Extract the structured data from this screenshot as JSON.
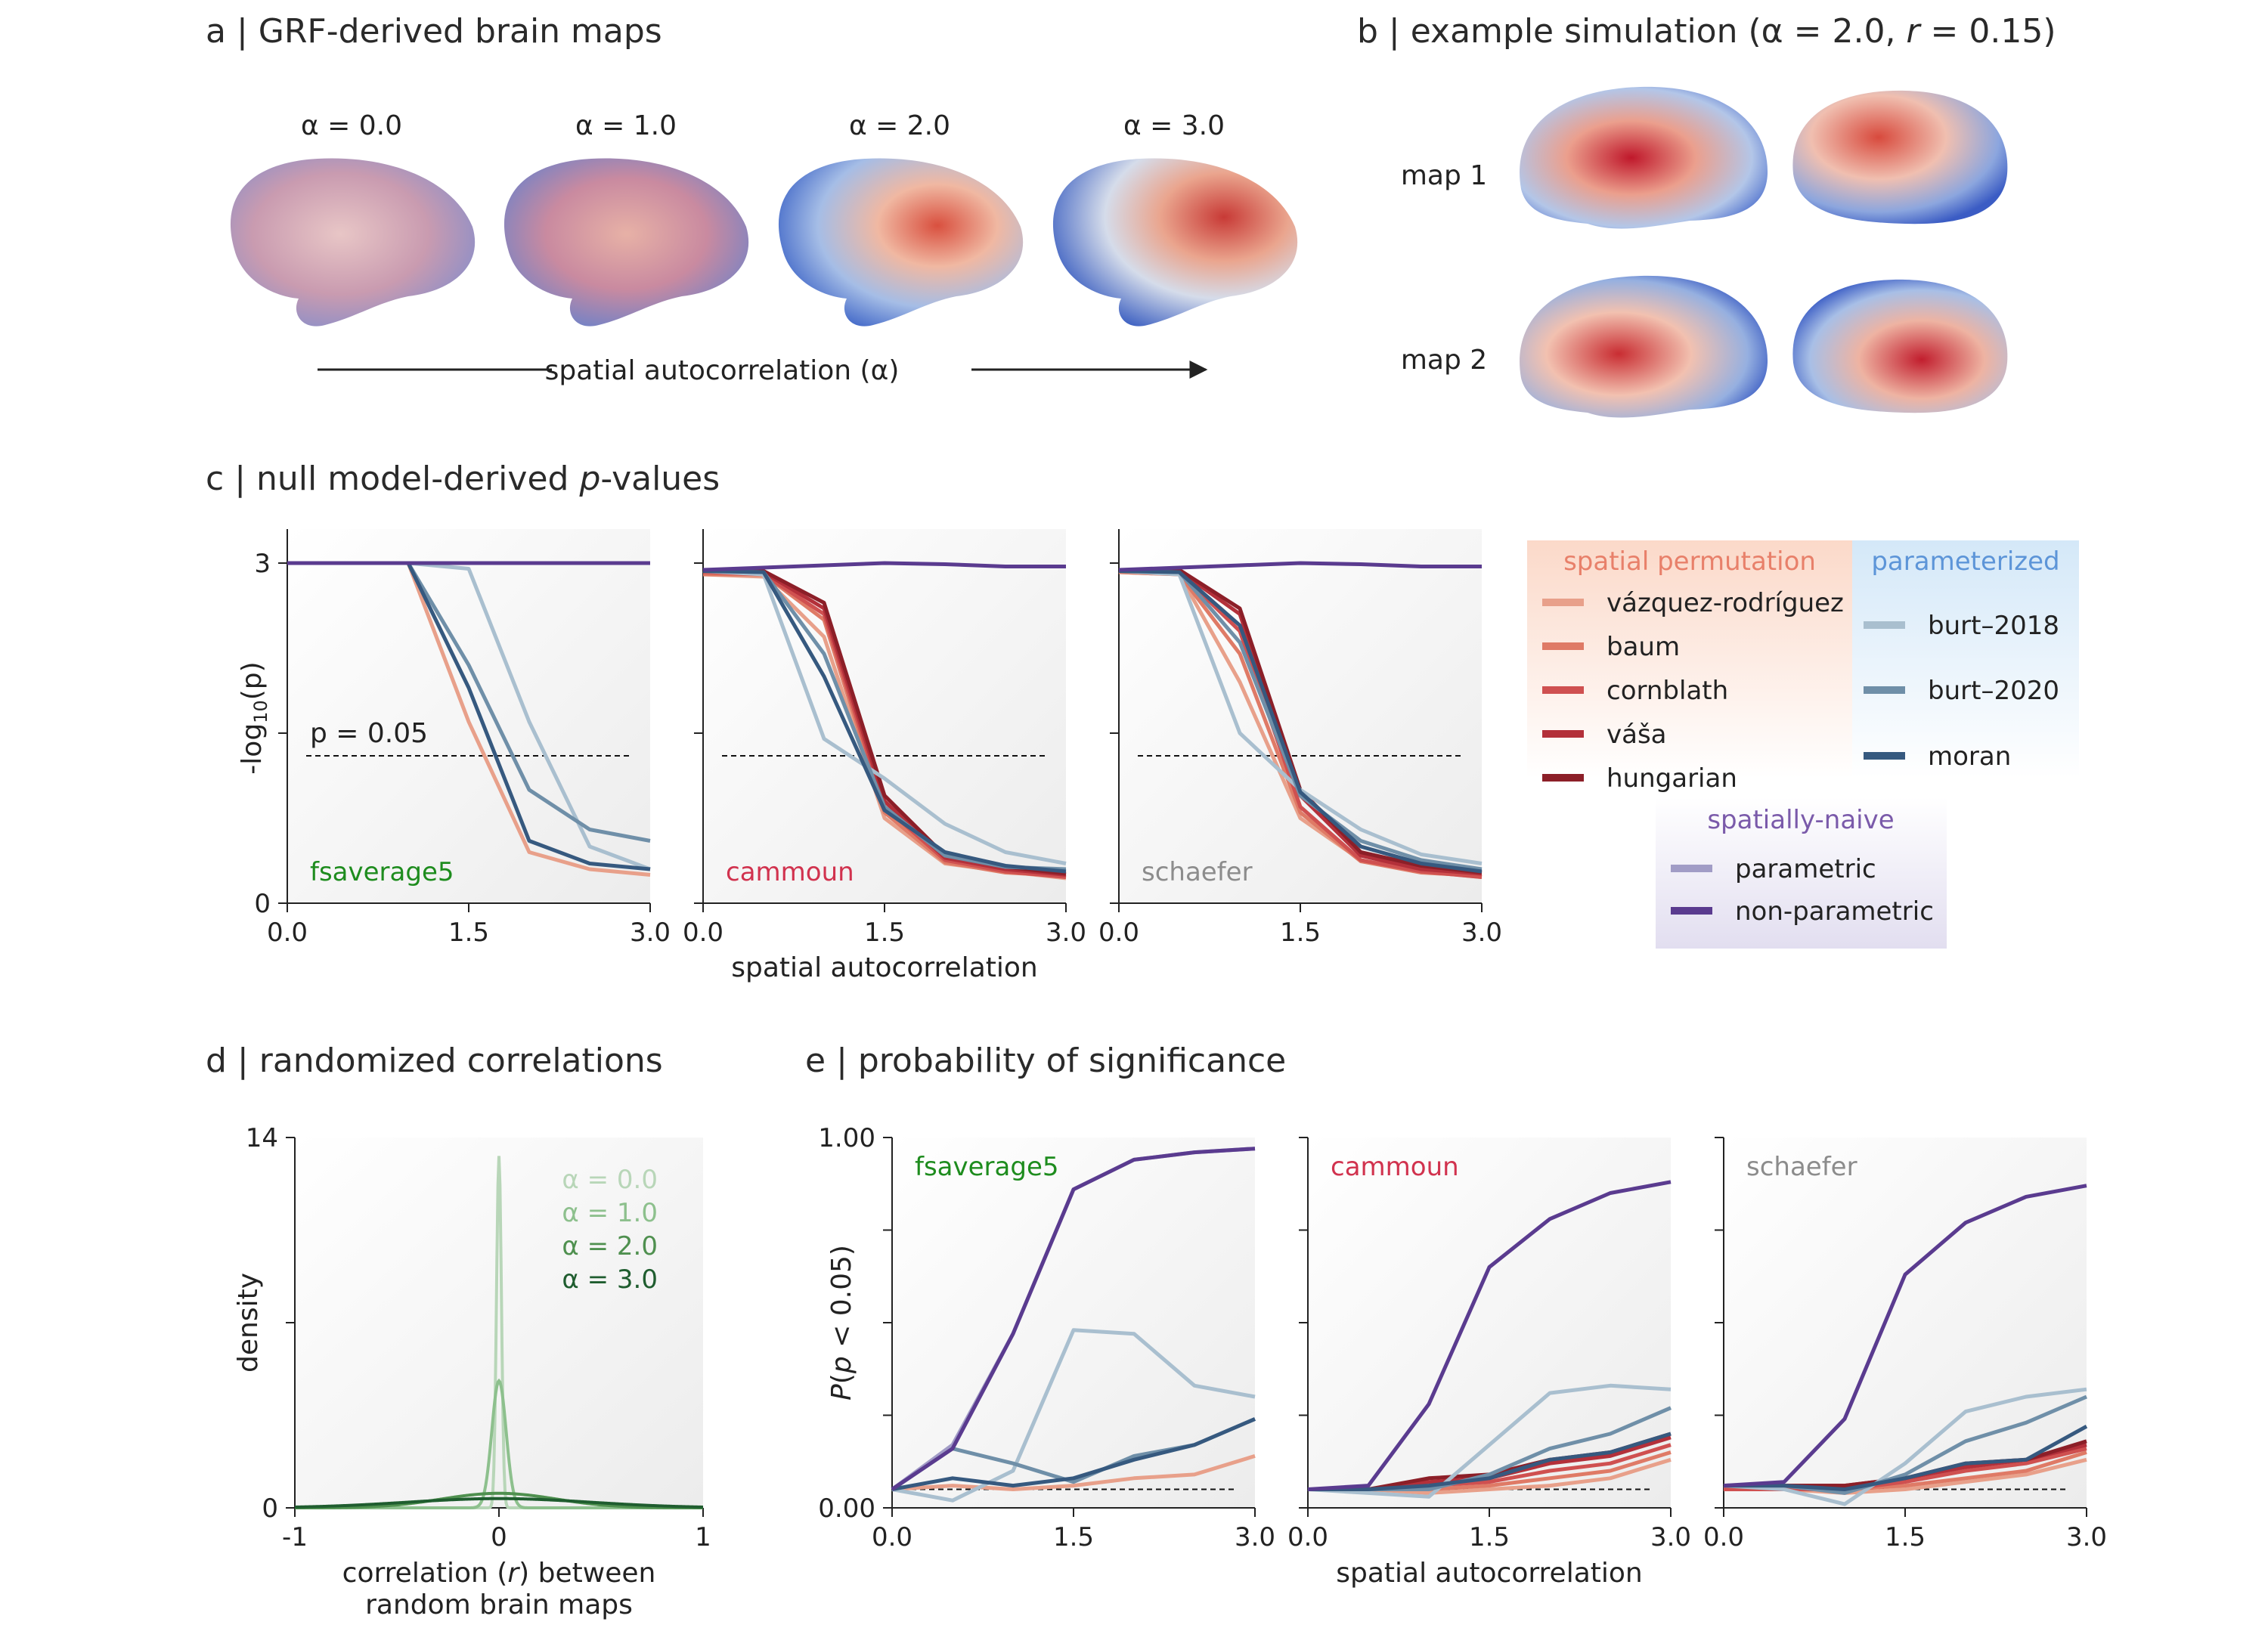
{
  "panels": {
    "a": {
      "letter": "a",
      "title": "GRF-derived brain maps",
      "alphas": [
        "α = 0.0",
        "α = 1.0",
        "α = 2.0",
        "α = 3.0"
      ],
      "arrow_label": "spatial autocorrelation (α)"
    },
    "b": {
      "letter": "b",
      "title_pre": "example simulation (α = 2.0, ",
      "title_r": "r",
      "title_post": " = 0.15)",
      "map_labels": [
        "map 1",
        "map 2"
      ]
    },
    "c": {
      "letter": "c",
      "title_pre": "null model-derived ",
      "title_p": "p",
      "title_post": "-values"
    },
    "d": {
      "letter": "d",
      "title": "randomized correlations"
    },
    "e": {
      "letter": "e",
      "title": "probability of significance"
    }
  },
  "legend": {
    "spatial_permutation": {
      "title": "spatial permutation",
      "items": [
        "vázquez-rodríguez",
        "baum",
        "cornblath",
        "váša",
        "hungarian"
      ]
    },
    "parameterized": {
      "title": "parameterized",
      "items": [
        "burt–2018",
        "burt–2020",
        "moran"
      ]
    },
    "spatially_naive": {
      "title": "spatially-naive",
      "items": [
        "parametric",
        "non-parametric"
      ]
    }
  },
  "colors": {
    "vazquez": "#e8a08a",
    "baum": "#df7a66",
    "cornblath": "#cf5050",
    "vasa": "#b3303a",
    "hungarian": "#8c1f28",
    "burt2018": "#a9bfcf",
    "burt2020": "#6f8fa8",
    "moran": "#36597f",
    "parametric": "#a19cc6",
    "nonparametric": "#5a3b8f",
    "fsaverage5": "#1e8c1e",
    "cammoun": "#d1324e",
    "schaefer": "#8c8c8c",
    "alpha0": "#b8d6b8",
    "alpha1": "#8dc08d",
    "alpha2": "#4f904f",
    "alpha3": "#1f5d2f"
  },
  "chart_data": [
    {
      "id": "c",
      "type": "line",
      "facets": [
        "fsaverage5",
        "cammoun",
        "schaefer"
      ],
      "ylabel": "-log10(p)",
      "xlabel": "spatial autocorrelation",
      "xlim": [
        0,
        3
      ],
      "ylim": [
        0,
        3.3
      ],
      "xticks": [
        "0.0",
        "1.5",
        "3.0"
      ],
      "yticks": [
        "0",
        "3"
      ],
      "threshold_label": "p = 0.05",
      "threshold": 1.3,
      "x": [
        0,
        0.5,
        1.0,
        1.5,
        2.0,
        2.5,
        3.0
      ],
      "panels": [
        {
          "name": "fsaverage5",
          "series": [
            {
              "name": "vázquez-rodríguez",
              "values": [
                3,
                3,
                3,
                1.6,
                0.45,
                0.3,
                0.25
              ]
            },
            {
              "name": "burt–2018",
              "values": [
                3,
                3,
                3,
                2.95,
                1.6,
                0.5,
                0.3
              ]
            },
            {
              "name": "burt–2020",
              "values": [
                3,
                3,
                3,
                2.1,
                1.0,
                0.65,
                0.55
              ]
            },
            {
              "name": "moran",
              "values": [
                3,
                3,
                3,
                1.9,
                0.55,
                0.35,
                0.3
              ]
            },
            {
              "name": "non-parametric",
              "values": [
                3,
                3,
                3,
                3,
                3,
                3,
                3
              ]
            }
          ]
        },
        {
          "name": "cammoun",
          "series": [
            {
              "name": "vázquez-rodríguez",
              "values": [
                2.9,
                2.88,
                2.35,
                0.75,
                0.35,
                0.28,
                0.22
              ]
            },
            {
              "name": "baum",
              "values": [
                2.9,
                2.9,
                2.5,
                0.8,
                0.36,
                0.27,
                0.24
              ]
            },
            {
              "name": "cornblath",
              "values": [
                2.92,
                2.9,
                2.55,
                0.85,
                0.38,
                0.28,
                0.23
              ]
            },
            {
              "name": "váša",
              "values": [
                2.93,
                2.92,
                2.6,
                0.9,
                0.4,
                0.3,
                0.25
              ]
            },
            {
              "name": "hungarian",
              "values": [
                2.94,
                2.93,
                2.65,
                0.95,
                0.42,
                0.32,
                0.26
              ]
            },
            {
              "name": "burt–2018",
              "values": [
                2.93,
                2.9,
                1.45,
                1.1,
                0.7,
                0.45,
                0.35
              ]
            },
            {
              "name": "burt–2020",
              "values": [
                2.93,
                2.92,
                2.2,
                0.85,
                0.42,
                0.32,
                0.3
              ]
            },
            {
              "name": "moran",
              "values": [
                2.93,
                2.92,
                2.0,
                0.82,
                0.45,
                0.33,
                0.28
              ]
            },
            {
              "name": "non-parametric",
              "values": [
                2.94,
                2.96,
                2.98,
                3.0,
                2.99,
                2.97,
                2.97
              ]
            }
          ]
        },
        {
          "name": "schaefer",
          "series": [
            {
              "name": "vázquez-rodríguez",
              "values": [
                2.92,
                2.9,
                1.95,
                0.75,
                0.38,
                0.28,
                0.23
              ]
            },
            {
              "name": "baum",
              "values": [
                2.92,
                2.9,
                2.2,
                0.8,
                0.37,
                0.27,
                0.24
              ]
            },
            {
              "name": "cornblath",
              "values": [
                2.93,
                2.92,
                2.4,
                0.85,
                0.38,
                0.28,
                0.23
              ]
            },
            {
              "name": "váša",
              "values": [
                2.93,
                2.93,
                2.55,
                0.95,
                0.42,
                0.3,
                0.26
              ]
            },
            {
              "name": "hungarian",
              "values": [
                2.94,
                2.94,
                2.6,
                1.0,
                0.45,
                0.33,
                0.27
              ]
            },
            {
              "name": "burt–2018",
              "values": [
                2.93,
                2.9,
                1.5,
                1.0,
                0.65,
                0.43,
                0.35
              ]
            },
            {
              "name": "burt–2020",
              "values": [
                2.93,
                2.92,
                2.3,
                0.95,
                0.55,
                0.38,
                0.3
              ]
            },
            {
              "name": "moran",
              "values": [
                2.93,
                2.92,
                2.45,
                0.98,
                0.5,
                0.35,
                0.28
              ]
            },
            {
              "name": "non-parametric",
              "values": [
                2.94,
                2.96,
                2.98,
                3.0,
                2.99,
                2.97,
                2.97
              ]
            }
          ]
        }
      ]
    },
    {
      "id": "d",
      "type": "line",
      "ylabel": "density",
      "xlabel_line1": "correlation (r) between",
      "xlabel_line2": "random brain maps",
      "xlim": [
        -1,
        1
      ],
      "ylim": [
        0,
        14
      ],
      "xticks": [
        "-1",
        "0",
        "1"
      ],
      "yticks": [
        "0",
        "14"
      ],
      "series": [
        {
          "name": "α = 0.0",
          "peak": 13.3,
          "sd": 0.012
        },
        {
          "name": "α = 1.0",
          "peak": 4.8,
          "sd": 0.035
        },
        {
          "name": "α = 2.0",
          "peak": 0.55,
          "sd": 0.28
        },
        {
          "name": "α = 3.0",
          "peak": 0.35,
          "sd": 0.45
        }
      ]
    },
    {
      "id": "e",
      "type": "line",
      "facets": [
        "fsaverage5",
        "cammoun",
        "schaefer"
      ],
      "ylabel": "P(p < 0.05)",
      "xlabel": "spatial autocorrelation",
      "xlim": [
        0,
        3
      ],
      "ylim": [
        0,
        1
      ],
      "xticks": [
        "0.0",
        "1.5",
        "3.0"
      ],
      "yticks": [
        "0.00",
        "1.00"
      ],
      "threshold": 0.05,
      "x": [
        0,
        0.5,
        1.0,
        1.5,
        2.0,
        2.5,
        3.0
      ],
      "panels": [
        {
          "name": "fsaverage5",
          "series": [
            {
              "name": "vázquez-rodríguez",
              "values": [
                0.05,
                0.06,
                0.05,
                0.06,
                0.08,
                0.09,
                0.14
              ]
            },
            {
              "name": "burt–2018",
              "values": [
                0.05,
                0.02,
                0.1,
                0.48,
                0.47,
                0.33,
                0.3
              ]
            },
            {
              "name": "burt–2020",
              "values": [
                0.05,
                0.16,
                0.12,
                0.07,
                0.14,
                0.17,
                0.24
              ]
            },
            {
              "name": "moran",
              "values": [
                0.05,
                0.08,
                0.06,
                0.08,
                0.13,
                0.17,
                0.24
              ]
            },
            {
              "name": "parametric",
              "values": [
                0.05,
                0.17,
                0.47,
                0.86,
                0.94,
                0.96,
                0.97
              ]
            },
            {
              "name": "non-parametric",
              "values": [
                0.05,
                0.16,
                0.47,
                0.86,
                0.94,
                0.96,
                0.97
              ]
            }
          ]
        },
        {
          "name": "cammoun",
          "series": [
            {
              "name": "vázquez-rodríguez",
              "values": [
                0.05,
                0.05,
                0.04,
                0.05,
                0.06,
                0.08,
                0.13
              ]
            },
            {
              "name": "baum",
              "values": [
                0.05,
                0.05,
                0.05,
                0.06,
                0.08,
                0.1,
                0.15
              ]
            },
            {
              "name": "cornblath",
              "values": [
                0.05,
                0.05,
                0.06,
                0.07,
                0.1,
                0.12,
                0.17
              ]
            },
            {
              "name": "váša",
              "values": [
                0.05,
                0.05,
                0.07,
                0.08,
                0.12,
                0.14,
                0.19
              ]
            },
            {
              "name": "hungarian",
              "values": [
                0.05,
                0.05,
                0.08,
                0.09,
                0.13,
                0.15,
                0.2
              ]
            },
            {
              "name": "burt–2018",
              "values": [
                0.05,
                0.04,
                0.03,
                0.17,
                0.31,
                0.33,
                0.32
              ]
            },
            {
              "name": "burt–2020",
              "values": [
                0.05,
                0.05,
                0.05,
                0.09,
                0.16,
                0.2,
                0.27
              ]
            },
            {
              "name": "moran",
              "values": [
                0.05,
                0.05,
                0.06,
                0.08,
                0.13,
                0.15,
                0.2
              ]
            },
            {
              "name": "non-parametric",
              "values": [
                0.05,
                0.06,
                0.28,
                0.65,
                0.78,
                0.85,
                0.88
              ]
            }
          ]
        },
        {
          "name": "schaefer",
          "series": [
            {
              "name": "vázquez-rodríguez",
              "values": [
                0.05,
                0.05,
                0.04,
                0.05,
                0.07,
                0.09,
                0.13
              ]
            },
            {
              "name": "baum",
              "values": [
                0.05,
                0.05,
                0.05,
                0.06,
                0.08,
                0.1,
                0.15
              ]
            },
            {
              "name": "cornblath",
              "values": [
                0.05,
                0.05,
                0.05,
                0.07,
                0.1,
                0.12,
                0.16
              ]
            },
            {
              "name": "váša",
              "values": [
                0.06,
                0.06,
                0.06,
                0.08,
                0.11,
                0.13,
                0.17
              ]
            },
            {
              "name": "hungarian",
              "values": [
                0.06,
                0.06,
                0.06,
                0.08,
                0.12,
                0.13,
                0.18
              ]
            },
            {
              "name": "burt–2018",
              "values": [
                0.06,
                0.05,
                0.01,
                0.12,
                0.26,
                0.3,
                0.32
              ]
            },
            {
              "name": "burt–2020",
              "values": [
                0.06,
                0.06,
                0.04,
                0.09,
                0.18,
                0.23,
                0.3
              ]
            },
            {
              "name": "moran",
              "values": [
                0.06,
                0.06,
                0.05,
                0.08,
                0.12,
                0.13,
                0.22
              ]
            },
            {
              "name": "non-parametric",
              "values": [
                0.06,
                0.07,
                0.24,
                0.63,
                0.77,
                0.84,
                0.87
              ]
            }
          ]
        }
      ]
    }
  ]
}
